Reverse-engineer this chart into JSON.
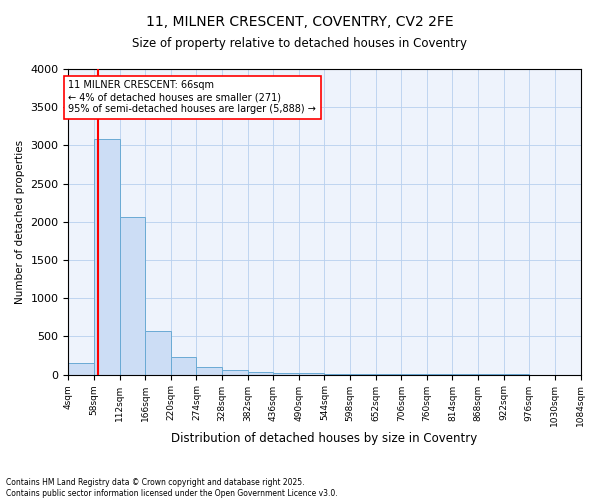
{
  "title1": "11, MILNER CRESCENT, COVENTRY, CV2 2FE",
  "title2": "Size of property relative to detached houses in Coventry",
  "xlabel": "Distribution of detached houses by size in Coventry",
  "ylabel": "Number of detached properties",
  "annotation_title": "11 MILNER CRESCENT: 66sqm",
  "annotation_line1": "← 4% of detached houses are smaller (271)",
  "annotation_line2": "95% of semi-detached houses are larger (5,888) →",
  "property_size_sqm": 66,
  "bar_color": "#ccddf5",
  "bar_edge_color": "#6aaad4",
  "vline_color": "red",
  "box_edge_color": "red",
  "background_color": "#eef3fc",
  "footer": "Contains HM Land Registry data © Crown copyright and database right 2025.\nContains public sector information licensed under the Open Government Licence v3.0.",
  "bins": [
    4,
    58,
    112,
    166,
    220,
    274,
    328,
    382,
    436,
    490,
    544,
    598,
    652,
    706,
    760,
    814,
    868,
    922,
    976,
    1030,
    1084
  ],
  "counts": [
    150,
    3080,
    2060,
    570,
    235,
    100,
    60,
    30,
    20,
    15,
    10,
    8,
    6,
    5,
    4,
    3,
    2,
    2,
    1,
    1
  ],
  "ylim": [
    0,
    4000
  ],
  "yticks": [
    0,
    500,
    1000,
    1500,
    2000,
    2500,
    3000,
    3500,
    4000
  ]
}
